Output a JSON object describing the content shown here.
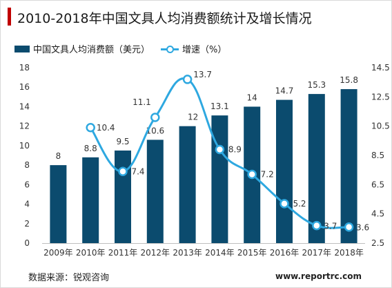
{
  "title": "2010-2018年中国文具人均消费额统计及增长情况",
  "source": "数据来源：锐观咨询",
  "watermark": "www.reportrc.com",
  "colors": {
    "bar": "#0b4b6e",
    "line": "#2ea8e0",
    "title_accent": "#c00000"
  },
  "chart_data": {
    "type": "bar",
    "categories": [
      "2009年",
      "2010年",
      "2011年",
      "2012年",
      "2013年",
      "2014年",
      "2015年",
      "2016年",
      "2017年",
      "2018年"
    ],
    "series": [
      {
        "name": "中国文具人均消费额（美元）",
        "type": "bar",
        "axis": "left",
        "values": [
          8,
          8.8,
          9.5,
          10.6,
          12,
          13.1,
          14,
          14.7,
          15.3,
          15.8
        ],
        "labels": [
          "8",
          "8.8",
          "9.5",
          "10.6",
          "12",
          "13.1",
          "14",
          "14.7",
          "15.3",
          "15.8"
        ]
      },
      {
        "name": "增速（%）",
        "type": "line",
        "axis": "right",
        "smooth": true,
        "values": [
          null,
          10.4,
          7.4,
          11.1,
          13.7,
          8.9,
          7.2,
          5.2,
          3.7,
          3.6
        ],
        "labels": [
          "",
          "10.4",
          "7.4",
          "11.1",
          "13.7",
          "8.9",
          "7.2",
          "5.2",
          "3.7",
          "3.6"
        ]
      }
    ],
    "y_left": {
      "min": 0,
      "max": 18,
      "ticks": [
        "0",
        "2",
        "4",
        "6",
        "8",
        "10",
        "12",
        "14",
        "16",
        "18"
      ]
    },
    "y_right": {
      "min": 2.5,
      "max": 14.5,
      "ticks": [
        "2.5",
        "4.5",
        "6.5",
        "8.5",
        "10.5",
        "12.5",
        "14.5"
      ]
    },
    "grid": false,
    "legend": "top-left"
  }
}
